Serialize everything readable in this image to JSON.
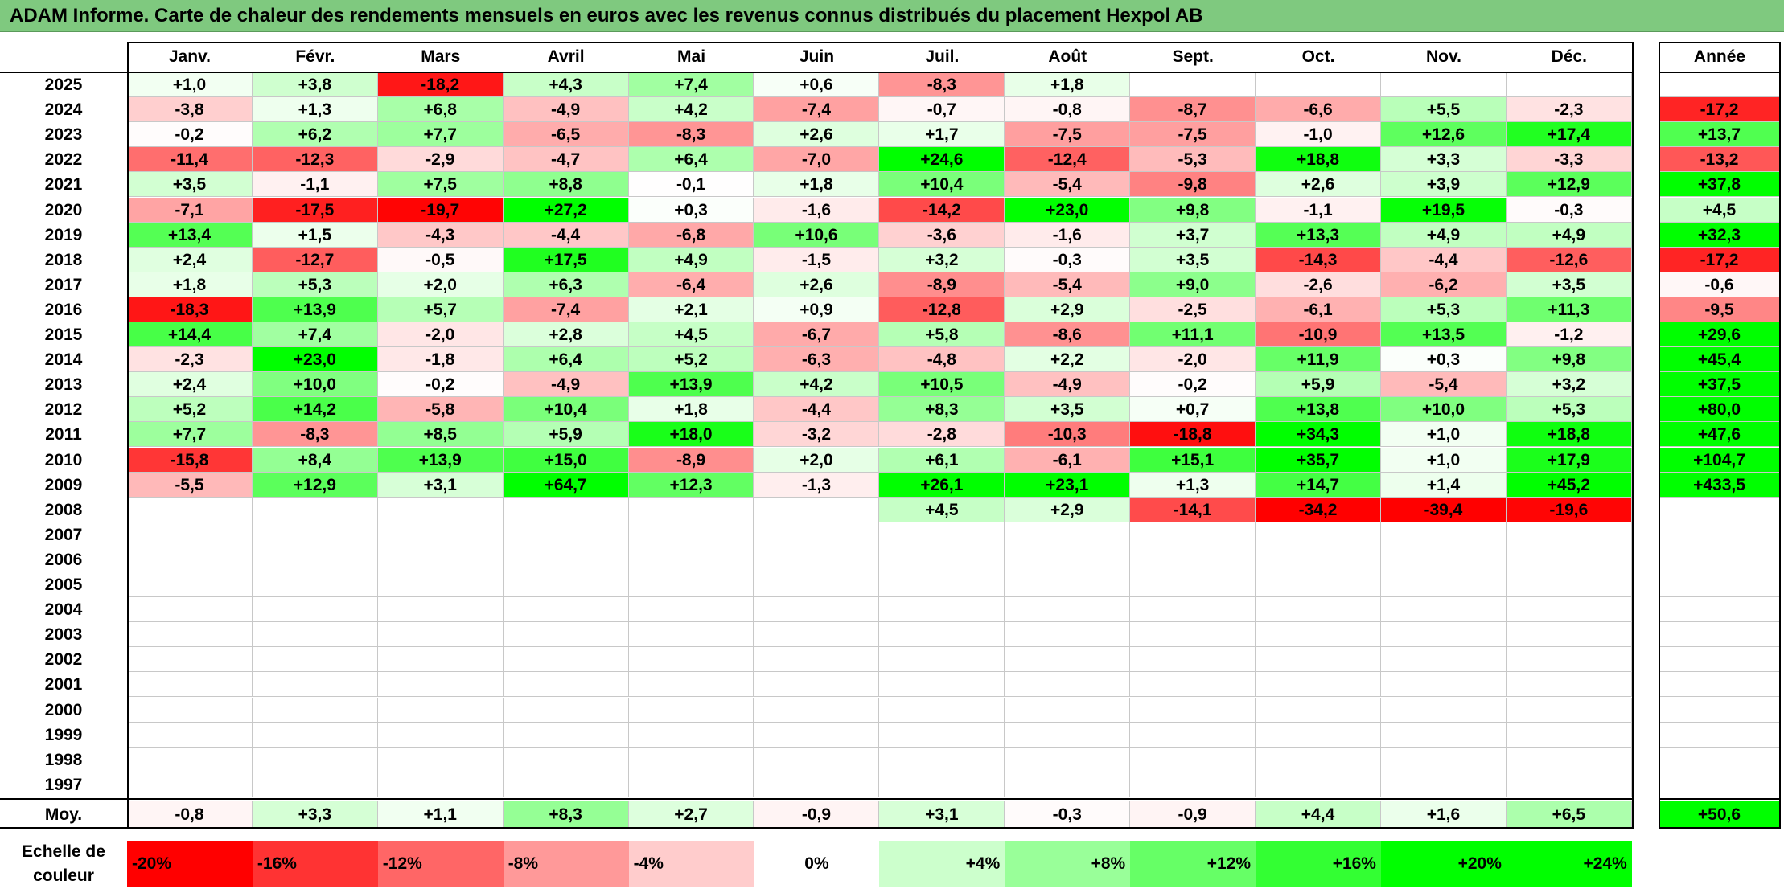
{
  "title": "ADAM Informe. Carte de chaleur des rendements mensuels en euros avec les revenus connus distribués du placement Hexpol AB",
  "chart_data": {
    "type": "heatmap",
    "title": "ADAM Informe. Carte de chaleur des rendements mensuels en euros avec les revenus connus distribués du placement Hexpol AB",
    "months": [
      "Janv.",
      "Févr.",
      "Mars",
      "Avril",
      "Mai",
      "Juin",
      "Juil.",
      "Août",
      "Sept.",
      "Oct.",
      "Nov.",
      "Déc."
    ],
    "year_header": "Année",
    "avg_label": "Moy.",
    "rows": [
      {
        "year": "2025",
        "values": [
          "+1,0",
          "+3,8",
          "-18,2",
          "+4,3",
          "+7,4",
          "+0,6",
          "-8,3",
          "+1,8",
          "",
          "",
          "",
          ""
        ],
        "annual": ""
      },
      {
        "year": "2024",
        "values": [
          "-3,8",
          "+1,3",
          "+6,8",
          "-4,9",
          "+4,2",
          "-7,4",
          "-0,7",
          "-0,8",
          "-8,7",
          "-6,6",
          "+5,5",
          "-2,3"
        ],
        "annual": "-17,2"
      },
      {
        "year": "2023",
        "values": [
          "-0,2",
          "+6,2",
          "+7,7",
          "-6,5",
          "-8,3",
          "+2,6",
          "+1,7",
          "-7,5",
          "-7,5",
          "-1,0",
          "+12,6",
          "+17,4"
        ],
        "annual": "+13,7"
      },
      {
        "year": "2022",
        "values": [
          "-11,4",
          "-12,3",
          "-2,9",
          "-4,7",
          "+6,4",
          "-7,0",
          "+24,6",
          "-12,4",
          "-5,3",
          "+18,8",
          "+3,3",
          "-3,3"
        ],
        "annual": "-13,2"
      },
      {
        "year": "2021",
        "values": [
          "+3,5",
          "-1,1",
          "+7,5",
          "+8,8",
          "-0,1",
          "+1,8",
          "+10,4",
          "-5,4",
          "-9,8",
          "+2,6",
          "+3,9",
          "+12,9"
        ],
        "annual": "+37,8"
      },
      {
        "year": "2020",
        "values": [
          "-7,1",
          "-17,5",
          "-19,7",
          "+27,2",
          "+0,3",
          "-1,6",
          "-14,2",
          "+23,0",
          "+9,8",
          "-1,1",
          "+19,5",
          "-0,3"
        ],
        "annual": "+4,5"
      },
      {
        "year": "2019",
        "values": [
          "+13,4",
          "+1,5",
          "-4,3",
          "-4,4",
          "-6,8",
          "+10,6",
          "-3,6",
          "-1,6",
          "+3,7",
          "+13,3",
          "+4,9",
          "+4,9"
        ],
        "annual": "+32,3"
      },
      {
        "year": "2018",
        "values": [
          "+2,4",
          "-12,7",
          "-0,5",
          "+17,5",
          "+4,9",
          "-1,5",
          "+3,2",
          "-0,3",
          "+3,5",
          "-14,3",
          "-4,4",
          "-12,6"
        ],
        "annual": "-17,2"
      },
      {
        "year": "2017",
        "values": [
          "+1,8",
          "+5,3",
          "+2,0",
          "+6,3",
          "-6,4",
          "+2,6",
          "-8,9",
          "-5,4",
          "+9,0",
          "-2,6",
          "-6,2",
          "+3,5"
        ],
        "annual": "-0,6"
      },
      {
        "year": "2016",
        "values": [
          "-18,3",
          "+13,9",
          "+5,7",
          "-7,4",
          "+2,1",
          "+0,9",
          "-12,8",
          "+2,9",
          "-2,5",
          "-6,1",
          "+5,3",
          "+11,3"
        ],
        "annual": "-9,5"
      },
      {
        "year": "2015",
        "values": [
          "+14,4",
          "+7,4",
          "-2,0",
          "+2,8",
          "+4,5",
          "-6,7",
          "+5,8",
          "-8,6",
          "+11,1",
          "-10,9",
          "+13,5",
          "-1,2"
        ],
        "annual": "+29,6"
      },
      {
        "year": "2014",
        "values": [
          "-2,3",
          "+23,0",
          "-1,8",
          "+6,4",
          "+5,2",
          "-6,3",
          "-4,8",
          "+2,2",
          "-2,0",
          "+11,9",
          "+0,3",
          "+9,8"
        ],
        "annual": "+45,4"
      },
      {
        "year": "2013",
        "values": [
          "+2,4",
          "+10,0",
          "-0,2",
          "-4,9",
          "+13,9",
          "+4,2",
          "+10,5",
          "-4,9",
          "-0,2",
          "+5,9",
          "-5,4",
          "+3,2"
        ],
        "annual": "+37,5"
      },
      {
        "year": "2012",
        "values": [
          "+5,2",
          "+14,2",
          "-5,8",
          "+10,4",
          "+1,8",
          "-4,4",
          "+8,3",
          "+3,5",
          "+0,7",
          "+13,8",
          "+10,0",
          "+5,3"
        ],
        "annual": "+80,0"
      },
      {
        "year": "2011",
        "values": [
          "+7,7",
          "-8,3",
          "+8,5",
          "+5,9",
          "+18,0",
          "-3,2",
          "-2,8",
          "-10,3",
          "-18,8",
          "+34,3",
          "+1,0",
          "+18,8"
        ],
        "annual": "+47,6"
      },
      {
        "year": "2010",
        "values": [
          "-15,8",
          "+8,4",
          "+13,9",
          "+15,0",
          "-8,9",
          "+2,0",
          "+6,1",
          "-6,1",
          "+15,1",
          "+35,7",
          "+1,0",
          "+17,9"
        ],
        "annual": "+104,7"
      },
      {
        "year": "2009",
        "values": [
          "-5,5",
          "+12,9",
          "+3,1",
          "+64,7",
          "+12,3",
          "-1,3",
          "+26,1",
          "+23,1",
          "+1,3",
          "+14,7",
          "+1,4",
          "+45,2"
        ],
        "annual": "+433,5"
      },
      {
        "year": "2008",
        "values": [
          "",
          "",
          "",
          "",
          "",
          "",
          "+4,5",
          "+2,9",
          "-14,1",
          "-34,2",
          "-39,4",
          "-19,6"
        ],
        "annual": ""
      },
      {
        "year": "2007",
        "values": [
          "",
          "",
          "",
          "",
          "",
          "",
          "",
          "",
          "",
          "",
          "",
          ""
        ],
        "annual": ""
      },
      {
        "year": "2006",
        "values": [
          "",
          "",
          "",
          "",
          "",
          "",
          "",
          "",
          "",
          "",
          "",
          ""
        ],
        "annual": ""
      },
      {
        "year": "2005",
        "values": [
          "",
          "",
          "",
          "",
          "",
          "",
          "",
          "",
          "",
          "",
          "",
          ""
        ],
        "annual": ""
      },
      {
        "year": "2004",
        "values": [
          "",
          "",
          "",
          "",
          "",
          "",
          "",
          "",
          "",
          "",
          "",
          ""
        ],
        "annual": ""
      },
      {
        "year": "2003",
        "values": [
          "",
          "",
          "",
          "",
          "",
          "",
          "",
          "",
          "",
          "",
          "",
          ""
        ],
        "annual": ""
      },
      {
        "year": "2002",
        "values": [
          "",
          "",
          "",
          "",
          "",
          "",
          "",
          "",
          "",
          "",
          "",
          ""
        ],
        "annual": ""
      },
      {
        "year": "2001",
        "values": [
          "",
          "",
          "",
          "",
          "",
          "",
          "",
          "",
          "",
          "",
          "",
          ""
        ],
        "annual": ""
      },
      {
        "year": "2000",
        "values": [
          "",
          "",
          "",
          "",
          "",
          "",
          "",
          "",
          "",
          "",
          "",
          ""
        ],
        "annual": ""
      },
      {
        "year": "1999",
        "values": [
          "",
          "",
          "",
          "",
          "",
          "",
          "",
          "",
          "",
          "",
          "",
          ""
        ],
        "annual": ""
      },
      {
        "year": "1998",
        "values": [
          "",
          "",
          "",
          "",
          "",
          "",
          "",
          "",
          "",
          "",
          "",
          ""
        ],
        "annual": ""
      },
      {
        "year": "1997",
        "values": [
          "",
          "",
          "",
          "",
          "",
          "",
          "",
          "",
          "",
          "",
          "",
          ""
        ],
        "annual": ""
      }
    ],
    "average": {
      "values": [
        "-0,8",
        "+3,3",
        "+1,1",
        "+8,3",
        "+2,7",
        "-0,9",
        "+3,1",
        "-0,3",
        "-0,9",
        "+4,4",
        "+1,6",
        "+6,5"
      ],
      "annual": "+50,6"
    },
    "legend": {
      "title": "Echelle de couleur",
      "stops": [
        "-20%",
        "-16%",
        "-12%",
        "-8%",
        "-4%",
        "0%",
        "+4%",
        "+8%",
        "+12%",
        "+16%",
        "+20%",
        "+24%"
      ],
      "colors": [
        "#ff0000",
        "#ff3333",
        "#ff6666",
        "#ff9999",
        "#ffcccc",
        "#ffffff",
        "#ccffcc",
        "#99ff99",
        "#66ff66",
        "#33ff33",
        "#00ff00",
        "#00ff00"
      ]
    }
  }
}
